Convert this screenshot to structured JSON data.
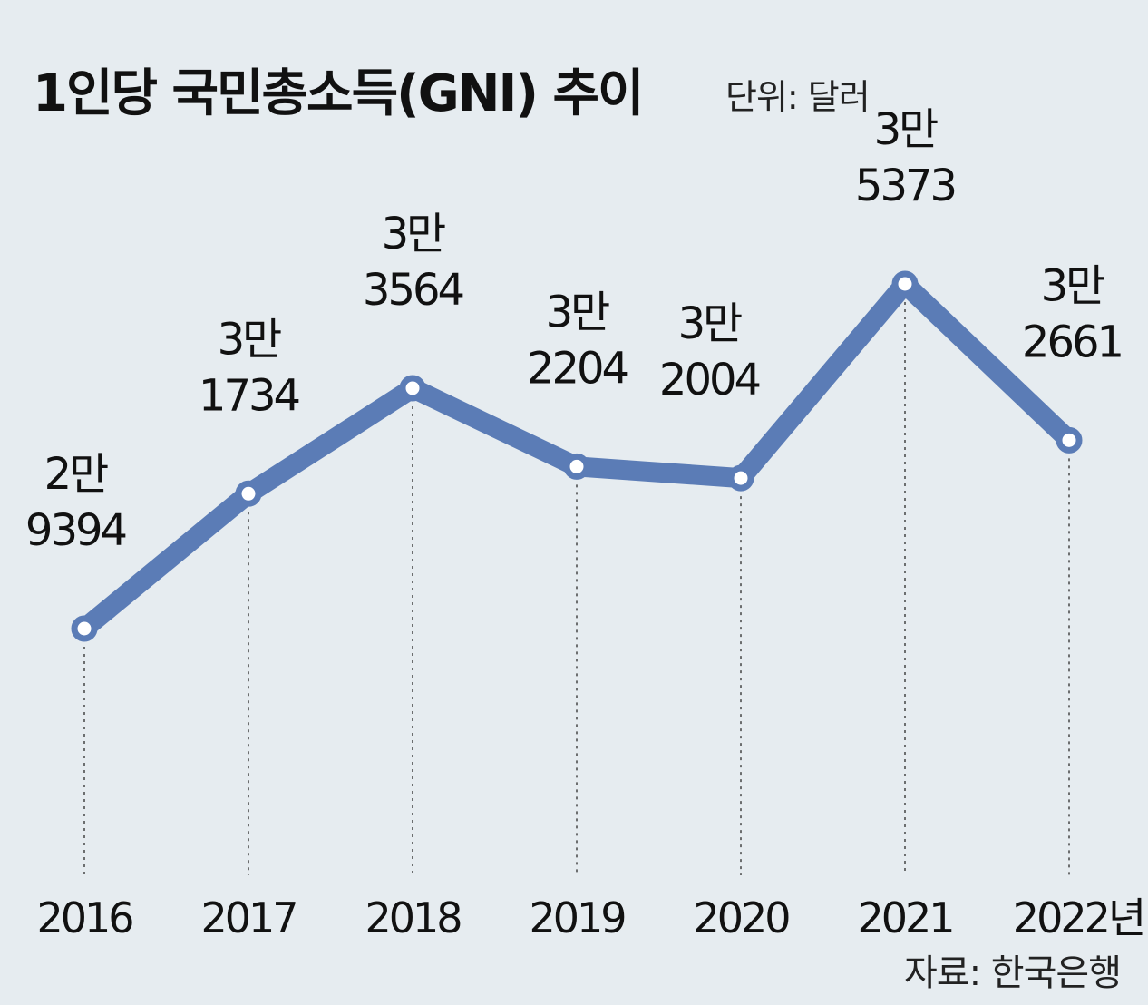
{
  "title": "1인당 국민총소득(GNI) 추이",
  "unit_label": "단위: 달러",
  "source": "자료: 한국은행",
  "colors": {
    "line": "#5b7cb6",
    "background": "#e6ecf0",
    "marker_fill": "#ffffff"
  },
  "chart_data": {
    "type": "line",
    "title": "1인당 국민총소득(GNI) 추이",
    "xlabel": "",
    "ylabel": "",
    "categories": [
      "2016",
      "2017",
      "2018",
      "2019",
      "2020",
      "2021",
      "2022년"
    ],
    "series": [
      {
        "values": [
          29394,
          31734,
          33564,
          32204,
          32004,
          35373,
          32661
        ],
        "labels": [
          [
            "2만",
            "9394"
          ],
          [
            "3만",
            "1734"
          ],
          [
            "3만",
            "3564"
          ],
          [
            "3만",
            "2204"
          ],
          [
            "3만",
            "2004"
          ],
          [
            "3만",
            "5373"
          ],
          [
            "3만",
            "2661"
          ]
        ]
      }
    ],
    "grid": false,
    "legend": "none"
  }
}
